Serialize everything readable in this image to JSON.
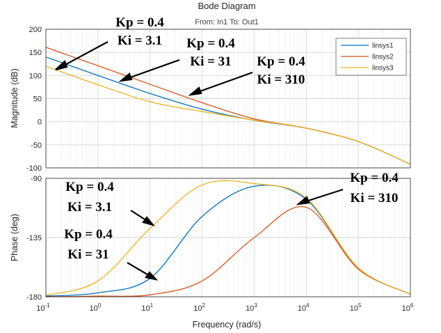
{
  "chart_data": [
    {
      "type": "line",
      "title": "Bode Diagram",
      "subtitle": "From: In1  To: Out1",
      "xlabel": "Frequency  (rad/s)",
      "ylabel": "Magnitude (dB)",
      "xscale": "log",
      "xlim": [
        0.1,
        1000000
      ],
      "ylim": [
        -100,
        200
      ],
      "xticks": [
        {
          "base": "10",
          "exp": "-1"
        },
        {
          "base": "10",
          "exp": "0"
        },
        {
          "base": "10",
          "exp": "1"
        },
        {
          "base": "10",
          "exp": "2"
        },
        {
          "base": "10",
          "exp": "3"
        },
        {
          "base": "10",
          "exp": "4"
        },
        {
          "base": "10",
          "exp": "5"
        },
        {
          "base": "10",
          "exp": "6"
        }
      ],
      "yticks": [
        "200",
        "150",
        "100",
        "50",
        "0",
        "-50",
        "-100"
      ],
      "grid": true,
      "legend": "top-right",
      "series": [
        {
          "name": "linsys1",
          "color": "#0072BD",
          "x": [
            0.1,
            1,
            10,
            100,
            1000,
            10000,
            100000,
            1000000
          ],
          "y": [
            140,
            100,
            61,
            27,
            3,
            -14,
            -43,
            -92
          ]
        },
        {
          "name": "linsys2",
          "color": "#D95319",
          "x": [
            0.1,
            1,
            10,
            100,
            1000,
            10000,
            100000,
            1000000
          ],
          "y": [
            161,
            121,
            81,
            41,
            6,
            -14,
            -43,
            -92
          ]
        },
        {
          "name": "linsys3",
          "color": "#EDB120",
          "x": [
            0.1,
            1,
            10,
            100,
            1000,
            10000,
            100000,
            1000000
          ],
          "y": [
            120,
            80,
            43,
            22,
            3,
            -14,
            -43,
            -92
          ]
        }
      ]
    },
    {
      "type": "line",
      "xlabel": "Frequency  (rad/s)",
      "ylabel": "Phase (deg)",
      "xscale": "log",
      "xlim": [
        0.1,
        1000000
      ],
      "ylim": [
        -180,
        -90
      ],
      "xticks": [
        {
          "base": "10",
          "exp": "-1"
        },
        {
          "base": "10",
          "exp": "0"
        },
        {
          "base": "10",
          "exp": "1"
        },
        {
          "base": "10",
          "exp": "2"
        },
        {
          "base": "10",
          "exp": "3"
        },
        {
          "base": "10",
          "exp": "4"
        },
        {
          "base": "10",
          "exp": "5"
        },
        {
          "base": "10",
          "exp": "6"
        }
      ],
      "yticks": [
        "-90",
        "-135",
        "-180"
      ],
      "grid": true,
      "series": [
        {
          "name": "linsys1",
          "color": "#0072BD",
          "x": [
            0.1,
            1,
            10,
            100,
            1000,
            10000,
            100000,
            1000000
          ],
          "y": [
            -179.5,
            -177,
            -166,
            -119,
            -96,
            -106,
            -158,
            -178
          ]
        },
        {
          "name": "linsys2",
          "color": "#D95319",
          "x": [
            0.1,
            1,
            10,
            100,
            1000,
            10000,
            100000,
            1000000
          ],
          "y": [
            -180,
            -179.5,
            -178.5,
            -168,
            -135,
            -112,
            -159,
            -178
          ]
        },
        {
          "name": "linsys3",
          "color": "#EDB120",
          "x": [
            0.1,
            1,
            10,
            100,
            1000,
            10000,
            100000,
            1000000
          ],
          "y": [
            -179,
            -168,
            -128,
            -95,
            -94,
            -105,
            -158,
            -178
          ]
        }
      ]
    }
  ],
  "annotations": [
    {
      "line1": "Kp = 0.4",
      "line2": "Ki = 3.1"
    },
    {
      "line1": "Kp = 0.4",
      "line2": "Ki = 31"
    },
    {
      "line1": "Kp = 0.4",
      "line2": "Ki = 310"
    },
    {
      "line1": "Kp = 0.4",
      "line2": "Ki = 3.1"
    },
    {
      "line1": "Kp = 0.4",
      "line2": "Ki = 31"
    },
    {
      "line1": "Kp = 0.4",
      "line2": "Ki = 310"
    }
  ]
}
